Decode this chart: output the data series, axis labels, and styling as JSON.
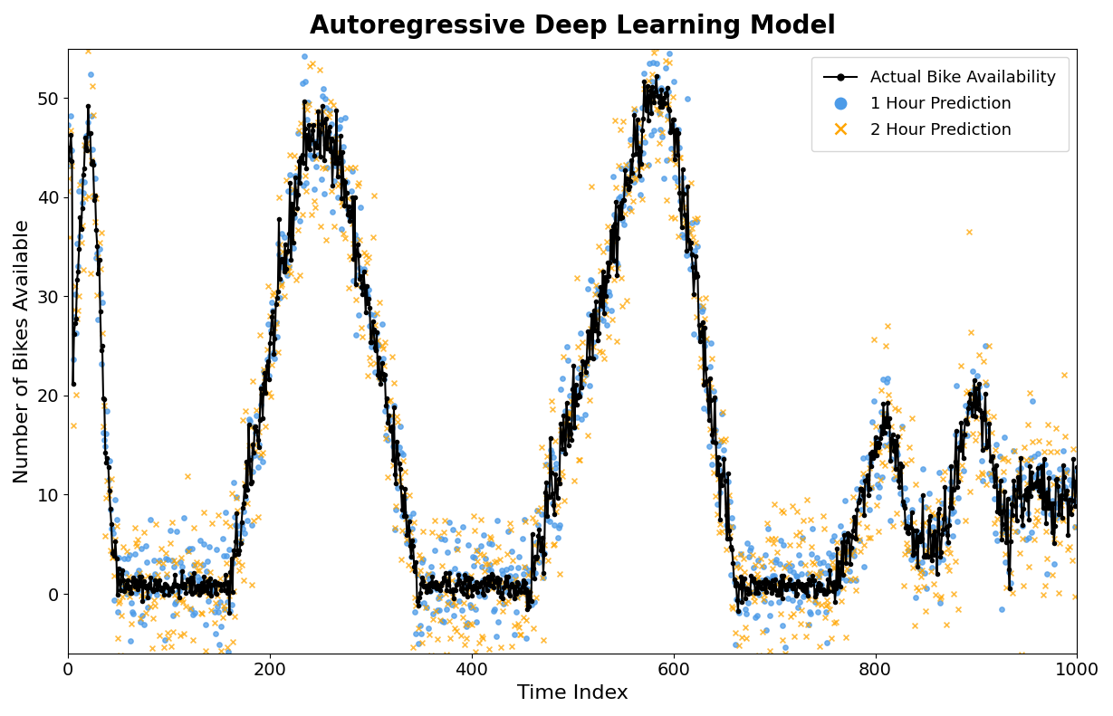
{
  "title": "Autoregressive Deep Learning Model",
  "xlabel": "Time Index",
  "ylabel": "Number of Bikes Available",
  "actual_color": "black",
  "pred1_color": "#4c9be8",
  "pred2_color": "orange",
  "legend_labels": [
    "Actual Bike Availability",
    "1 Hour Prediction",
    "2 Hour Prediction"
  ],
  "ylim": [
    -6,
    55
  ],
  "xlim": [
    0,
    1000
  ],
  "title_fontsize": 20,
  "label_fontsize": 16,
  "tick_fontsize": 14,
  "seed": 42
}
